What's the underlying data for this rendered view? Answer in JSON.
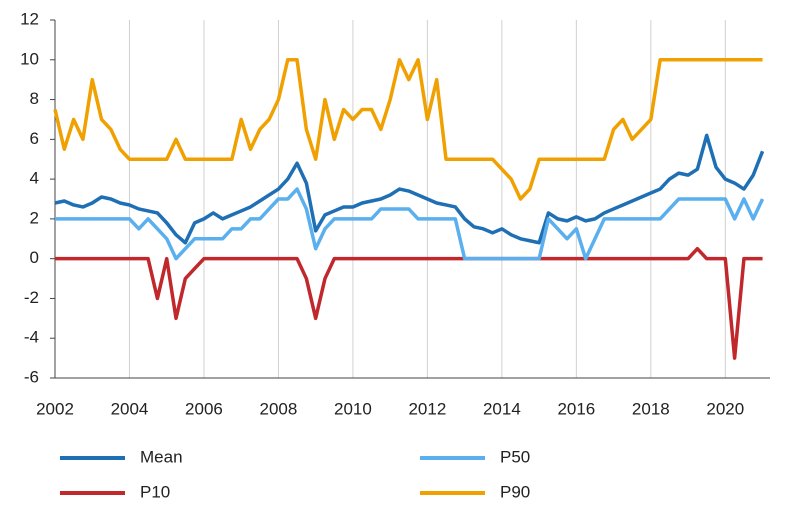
{
  "chart_data": {
    "type": "line",
    "x": [
      2002,
      2002.25,
      2002.5,
      2002.75,
      2003,
      2003.25,
      2003.5,
      2003.75,
      2004,
      2004.25,
      2004.5,
      2004.75,
      2005,
      2005.25,
      2005.5,
      2005.75,
      2006,
      2006.25,
      2006.5,
      2006.75,
      2007,
      2007.25,
      2007.5,
      2007.75,
      2008,
      2008.25,
      2008.5,
      2008.75,
      2009,
      2009.25,
      2009.5,
      2009.75,
      2010,
      2010.25,
      2010.5,
      2010.75,
      2011,
      2011.25,
      2011.5,
      2011.75,
      2012,
      2012.25,
      2012.5,
      2012.75,
      2013,
      2013.25,
      2013.5,
      2013.75,
      2014,
      2014.25,
      2014.5,
      2014.75,
      2015,
      2015.25,
      2015.5,
      2015.75,
      2016,
      2016.25,
      2016.5,
      2016.75,
      2017,
      2017.25,
      2017.5,
      2017.75,
      2018,
      2018.25,
      2018.5,
      2018.75,
      2019,
      2019.25,
      2019.5,
      2019.75,
      2020,
      2020.25,
      2020.5,
      2020.75,
      2021
    ],
    "series": [
      {
        "name": "Mean",
        "color": "#1f6fb5",
        "values": [
          2.8,
          2.9,
          2.7,
          2.6,
          2.8,
          3.1,
          3.0,
          2.8,
          2.7,
          2.5,
          2.4,
          2.3,
          1.8,
          1.2,
          0.8,
          1.8,
          2.0,
          2.3,
          2.0,
          2.2,
          2.4,
          2.6,
          2.9,
          3.2,
          3.5,
          4.0,
          4.8,
          3.8,
          1.4,
          2.2,
          2.4,
          2.6,
          2.6,
          2.8,
          2.9,
          3.0,
          3.2,
          3.5,
          3.4,
          3.2,
          3.0,
          2.8,
          2.7,
          2.6,
          2.0,
          1.6,
          1.5,
          1.3,
          1.5,
          1.2,
          1.0,
          0.9,
          0.8,
          2.3,
          2.0,
          1.9,
          2.1,
          1.9,
          2.0,
          2.3,
          2.5,
          2.7,
          2.9,
          3.1,
          3.3,
          3.5,
          4.0,
          4.3,
          4.2,
          4.5,
          6.2,
          4.6,
          4.0,
          3.8,
          3.5,
          4.2,
          5.4
        ]
      },
      {
        "name": "P10",
        "color": "#c0282c",
        "values": [
          0,
          0,
          0,
          0,
          0,
          0,
          0,
          0,
          0,
          0,
          0,
          -2,
          0,
          -3,
          -1,
          -0.5,
          0,
          0,
          0,
          0,
          0,
          0,
          0,
          0,
          0,
          0,
          0,
          -1,
          -3,
          -1,
          0,
          0,
          0,
          0,
          0,
          0,
          0,
          0,
          0,
          0,
          0,
          0,
          0,
          0,
          0,
          0,
          0,
          0,
          0,
          0,
          0,
          0,
          0,
          0,
          0,
          0,
          0,
          0,
          0,
          0,
          0,
          0,
          0,
          0,
          0,
          0,
          0,
          0,
          0,
          0.5,
          0,
          0,
          0,
          -5,
          0,
          0,
          0
        ]
      },
      {
        "name": "P50",
        "color": "#5aafee",
        "values": [
          2,
          2,
          2,
          2,
          2,
          2,
          2,
          2,
          2,
          1.5,
          2,
          1.5,
          1,
          0,
          0.5,
          1,
          1,
          1,
          1,
          1.5,
          1.5,
          2,
          2,
          2.5,
          3,
          3,
          3.5,
          2.5,
          0.5,
          1.5,
          2,
          2,
          2,
          2,
          2,
          2.5,
          2.5,
          2.5,
          2.5,
          2,
          2,
          2,
          2,
          2,
          0,
          0,
          0,
          0,
          0,
          0,
          0,
          0,
          0,
          2,
          1.5,
          1,
          1.5,
          0,
          1,
          2,
          2,
          2,
          2,
          2,
          2,
          2,
          2.5,
          3,
          3,
          3,
          3,
          3,
          3,
          2,
          3,
          2,
          3
        ]
      },
      {
        "name": "P90",
        "color": "#f0a000",
        "values": [
          7.5,
          5.5,
          7,
          6,
          9,
          7,
          6.5,
          5.5,
          5,
          5,
          5,
          5,
          5,
          6,
          5,
          5,
          5,
          5,
          5,
          5,
          7,
          5.5,
          6.5,
          7,
          8,
          10,
          10,
          6.5,
          5,
          8,
          6,
          7.5,
          7,
          7.5,
          7.5,
          6.5,
          8,
          10,
          9,
          10,
          7,
          9,
          5,
          5,
          5,
          5,
          5,
          5,
          4.5,
          4,
          3,
          3.5,
          5,
          5,
          5,
          5,
          5,
          5,
          5,
          5,
          6.5,
          7,
          6,
          6.5,
          7,
          10,
          10,
          10,
          10,
          10,
          10,
          10,
          10,
          10,
          10,
          10,
          10
        ]
      }
    ],
    "xlim": [
      2002,
      2021.2
    ],
    "xticks": [
      2002,
      2004,
      2006,
      2008,
      2010,
      2012,
      2014,
      2016,
      2018,
      2020
    ],
    "ylim": [
      -6,
      12
    ],
    "yticks": [
      -6,
      -4,
      -2,
      0,
      2,
      4,
      6,
      8,
      10,
      12
    ]
  }
}
